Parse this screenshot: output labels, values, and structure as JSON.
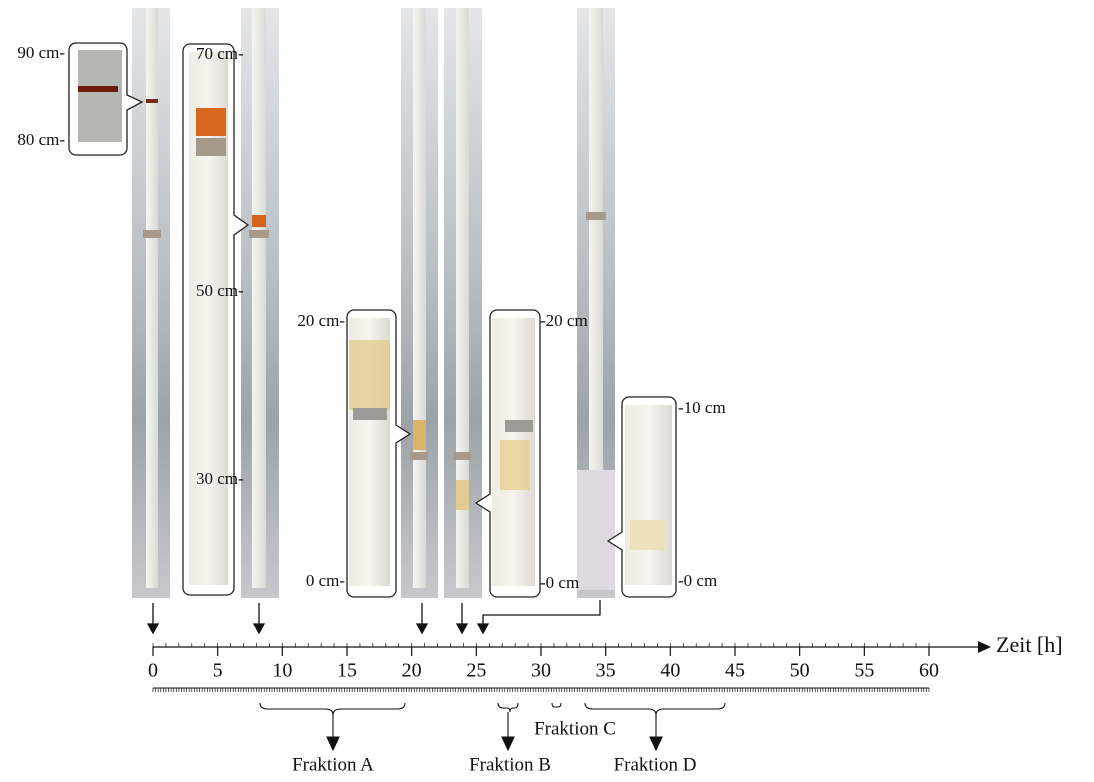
{
  "scale_labels": [
    "90 cm-",
    "80 cm-",
    "70 cm-",
    "50 cm-",
    "30 cm-",
    "20 cm-",
    "0 cm-",
    "-20 cm",
    "-0 cm",
    "-10 cm",
    "-0 cm"
  ],
  "timeline": {
    "ticks": [
      0,
      5,
      10,
      15,
      20,
      25,
      30,
      35,
      40,
      45,
      50,
      55,
      60
    ],
    "label": "Zeit [h]"
  },
  "fractions": [
    "Fraktion A",
    "Fraktion B",
    "Fraktion C",
    "Fraktion D"
  ]
}
